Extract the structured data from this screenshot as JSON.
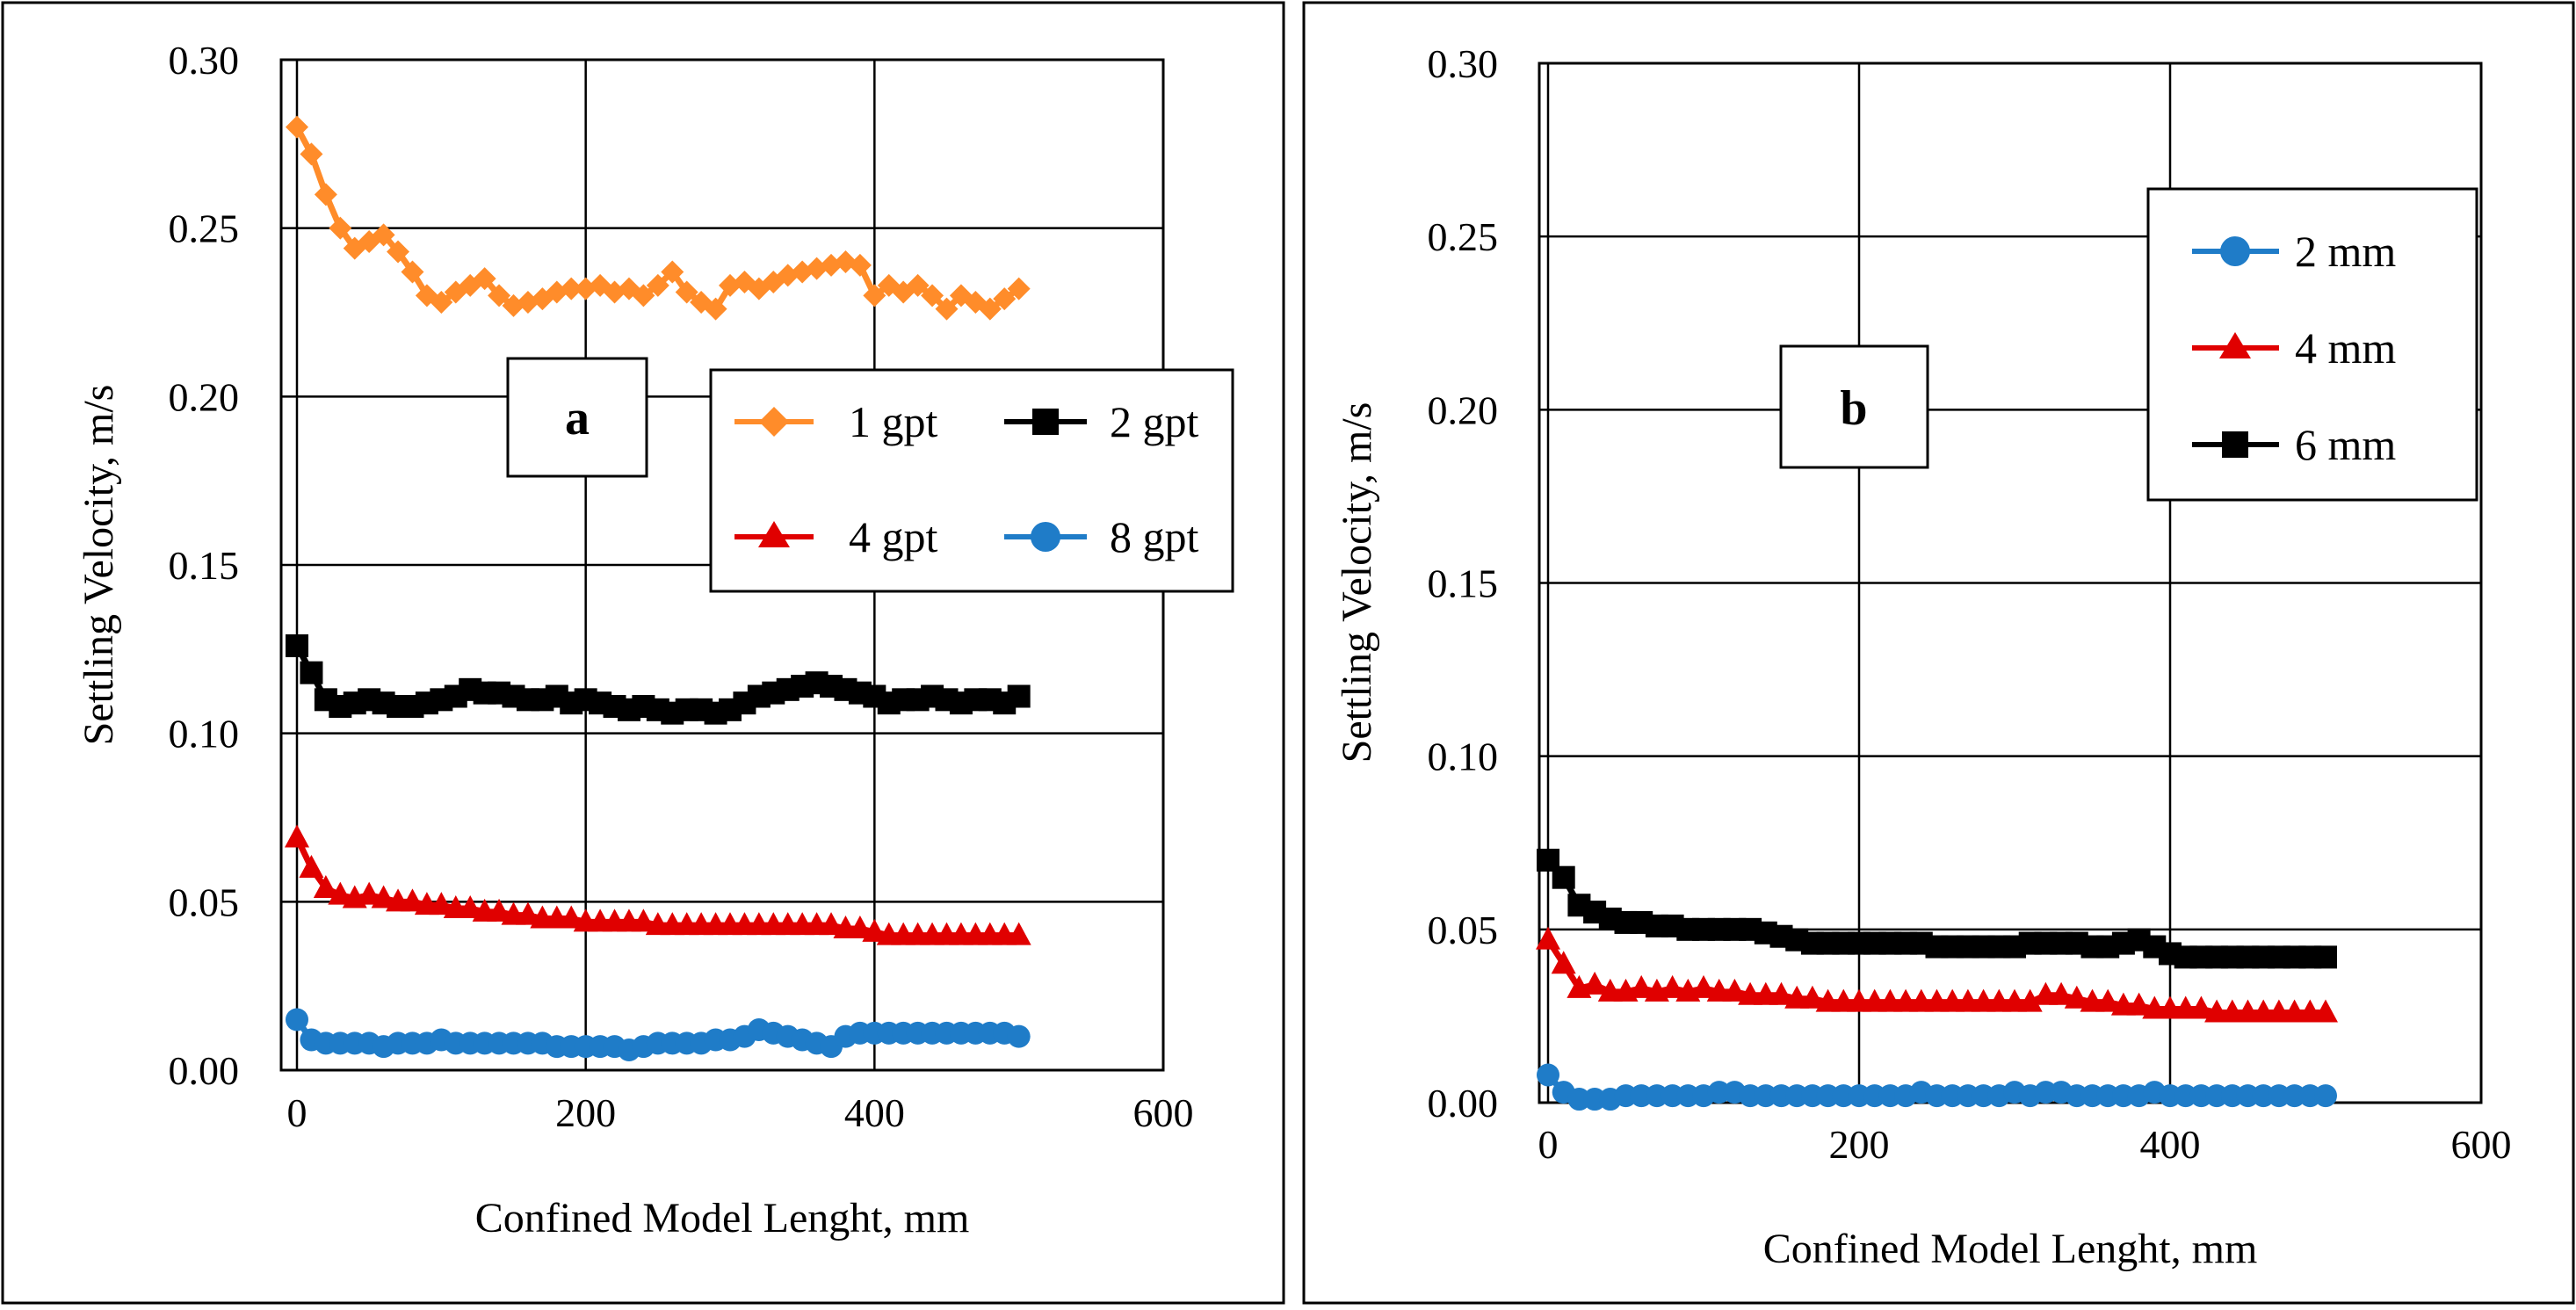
{
  "colors": {
    "orange": "#FF8C2A",
    "black": "#000000",
    "red": "#E00000",
    "blue": "#1F7CC8"
  },
  "chart_data": [
    {
      "type": "line",
      "panel_label": "a",
      "xlabel": "Confined Model Lenght, mm",
      "ylabel": "Settling Velocity, m/s",
      "xlim": [
        0,
        600
      ],
      "ylim": [
        0.0,
        0.3
      ],
      "xticks": [
        "0",
        "200",
        "400",
        "600"
      ],
      "yticks": [
        "0.00",
        "0.05",
        "0.10",
        "0.15",
        "0.20",
        "0.25",
        "0.30"
      ],
      "grid": true,
      "legend_position": "right-middle",
      "series": [
        {
          "name": "1 gpt",
          "color": "#FF8C2A",
          "marker": "diamond",
          "x": [
            0,
            10,
            20,
            30,
            40,
            50,
            60,
            70,
            80,
            90,
            100,
            110,
            120,
            130,
            140,
            150,
            160,
            170,
            180,
            190,
            200,
            210,
            220,
            230,
            240,
            250,
            260,
            270,
            280,
            290,
            300,
            310,
            320,
            330,
            340,
            350,
            360,
            370,
            380,
            390,
            400,
            410,
            420,
            430,
            440,
            450,
            460,
            470,
            480,
            490,
            500
          ],
          "y": [
            0.28,
            0.272,
            0.26,
            0.25,
            0.244,
            0.246,
            0.248,
            0.243,
            0.237,
            0.23,
            0.228,
            0.231,
            0.233,
            0.235,
            0.23,
            0.227,
            0.228,
            0.229,
            0.231,
            0.232,
            0.232,
            0.233,
            0.231,
            0.232,
            0.23,
            0.233,
            0.237,
            0.231,
            0.228,
            0.226,
            0.233,
            0.234,
            0.232,
            0.234,
            0.236,
            0.237,
            0.238,
            0.239,
            0.24,
            0.239,
            0.23,
            0.233,
            0.231,
            0.233,
            0.23,
            0.226,
            0.23,
            0.228,
            0.226,
            0.229,
            0.232
          ]
        },
        {
          "name": "2 gpt",
          "color": "#000000",
          "marker": "square",
          "x": [
            0,
            10,
            20,
            30,
            40,
            50,
            60,
            70,
            80,
            90,
            100,
            110,
            120,
            130,
            140,
            150,
            160,
            170,
            180,
            190,
            200,
            210,
            220,
            230,
            240,
            250,
            260,
            270,
            280,
            290,
            300,
            310,
            320,
            330,
            340,
            350,
            360,
            370,
            380,
            390,
            400,
            410,
            420,
            430,
            440,
            450,
            460,
            470,
            480,
            490,
            500
          ],
          "y": [
            0.126,
            0.118,
            0.11,
            0.108,
            0.109,
            0.11,
            0.109,
            0.108,
            0.108,
            0.109,
            0.11,
            0.111,
            0.113,
            0.112,
            0.112,
            0.111,
            0.11,
            0.11,
            0.111,
            0.109,
            0.11,
            0.109,
            0.108,
            0.107,
            0.108,
            0.107,
            0.106,
            0.107,
            0.107,
            0.106,
            0.107,
            0.109,
            0.111,
            0.112,
            0.113,
            0.114,
            0.115,
            0.114,
            0.113,
            0.112,
            0.111,
            0.109,
            0.11,
            0.11,
            0.111,
            0.11,
            0.109,
            0.11,
            0.11,
            0.109,
            0.111
          ]
        },
        {
          "name": "4 gpt",
          "color": "#E00000",
          "marker": "triangle",
          "x": [
            0,
            10,
            20,
            30,
            40,
            50,
            60,
            70,
            80,
            90,
            100,
            110,
            120,
            130,
            140,
            150,
            160,
            170,
            180,
            190,
            200,
            210,
            220,
            230,
            240,
            250,
            260,
            270,
            280,
            290,
            300,
            310,
            320,
            330,
            340,
            350,
            360,
            370,
            380,
            390,
            400,
            410,
            420,
            430,
            440,
            450,
            460,
            470,
            480,
            490,
            500
          ],
          "y": [
            0.069,
            0.06,
            0.054,
            0.052,
            0.051,
            0.052,
            0.051,
            0.05,
            0.05,
            0.049,
            0.049,
            0.048,
            0.048,
            0.047,
            0.047,
            0.046,
            0.046,
            0.045,
            0.045,
            0.045,
            0.044,
            0.044,
            0.044,
            0.044,
            0.044,
            0.043,
            0.043,
            0.043,
            0.043,
            0.043,
            0.043,
            0.043,
            0.043,
            0.043,
            0.043,
            0.043,
            0.043,
            0.043,
            0.042,
            0.042,
            0.041,
            0.04,
            0.04,
            0.04,
            0.04,
            0.04,
            0.04,
            0.04,
            0.04,
            0.04,
            0.04
          ]
        },
        {
          "name": "8 gpt",
          "color": "#1F7CC8",
          "marker": "circle",
          "x": [
            0,
            10,
            20,
            30,
            40,
            50,
            60,
            70,
            80,
            90,
            100,
            110,
            120,
            130,
            140,
            150,
            160,
            170,
            180,
            190,
            200,
            210,
            220,
            230,
            240,
            250,
            260,
            270,
            280,
            290,
            300,
            310,
            320,
            330,
            340,
            350,
            360,
            370,
            380,
            390,
            400,
            410,
            420,
            430,
            440,
            450,
            460,
            470,
            480,
            490,
            500
          ],
          "y": [
            0.015,
            0.009,
            0.008,
            0.008,
            0.008,
            0.008,
            0.007,
            0.008,
            0.008,
            0.008,
            0.009,
            0.008,
            0.008,
            0.008,
            0.008,
            0.008,
            0.008,
            0.008,
            0.007,
            0.007,
            0.007,
            0.007,
            0.007,
            0.006,
            0.007,
            0.008,
            0.008,
            0.008,
            0.008,
            0.009,
            0.009,
            0.01,
            0.012,
            0.011,
            0.01,
            0.009,
            0.008,
            0.007,
            0.01,
            0.011,
            0.011,
            0.011,
            0.011,
            0.011,
            0.011,
            0.011,
            0.011,
            0.011,
            0.011,
            0.011,
            0.01
          ]
        }
      ]
    },
    {
      "type": "line",
      "panel_label": "b",
      "xlabel": "Confined Model Lenght, mm",
      "ylabel": "Settling Velocity, m/s",
      "xlim": [
        0,
        600
      ],
      "ylim": [
        0.0,
        0.3
      ],
      "xticks": [
        "0",
        "200",
        "400",
        "600"
      ],
      "yticks": [
        "0.00",
        "0.05",
        "0.10",
        "0.15",
        "0.20",
        "0.25",
        "0.30"
      ],
      "grid": true,
      "legend_position": "top-right",
      "series": [
        {
          "name": "2 mm",
          "color": "#1F7CC8",
          "marker": "circle",
          "x": [
            0,
            10,
            20,
            30,
            40,
            50,
            60,
            70,
            80,
            90,
            100,
            110,
            120,
            130,
            140,
            150,
            160,
            170,
            180,
            190,
            200,
            210,
            220,
            230,
            240,
            250,
            260,
            270,
            280,
            290,
            300,
            310,
            320,
            330,
            340,
            350,
            360,
            370,
            380,
            390,
            400,
            410,
            420,
            430,
            440,
            450,
            460,
            470,
            480,
            490,
            500
          ],
          "y": [
            0.008,
            0.003,
            0.001,
            0.001,
            0.001,
            0.002,
            0.002,
            0.002,
            0.002,
            0.002,
            0.002,
            0.003,
            0.003,
            0.002,
            0.002,
            0.002,
            0.002,
            0.002,
            0.002,
            0.002,
            0.002,
            0.002,
            0.002,
            0.002,
            0.003,
            0.002,
            0.002,
            0.002,
            0.002,
            0.002,
            0.003,
            0.002,
            0.003,
            0.003,
            0.002,
            0.002,
            0.002,
            0.002,
            0.002,
            0.003,
            0.002,
            0.002,
            0.002,
            0.002,
            0.002,
            0.002,
            0.002,
            0.002,
            0.002,
            0.002,
            0.002
          ]
        },
        {
          "name": "4 mm",
          "color": "#E00000",
          "marker": "triangle",
          "x": [
            0,
            10,
            20,
            30,
            40,
            50,
            60,
            70,
            80,
            90,
            100,
            110,
            120,
            130,
            140,
            150,
            160,
            170,
            180,
            190,
            200,
            210,
            220,
            230,
            240,
            250,
            260,
            270,
            280,
            290,
            300,
            310,
            320,
            330,
            340,
            350,
            360,
            370,
            380,
            390,
            400,
            410,
            420,
            430,
            440,
            450,
            460,
            470,
            480,
            490,
            500
          ],
          "y": [
            0.047,
            0.04,
            0.033,
            0.034,
            0.032,
            0.032,
            0.033,
            0.032,
            0.033,
            0.032,
            0.033,
            0.032,
            0.032,
            0.031,
            0.031,
            0.031,
            0.03,
            0.03,
            0.029,
            0.029,
            0.029,
            0.029,
            0.029,
            0.029,
            0.029,
            0.029,
            0.029,
            0.029,
            0.029,
            0.029,
            0.029,
            0.029,
            0.031,
            0.031,
            0.03,
            0.029,
            0.029,
            0.028,
            0.028,
            0.027,
            0.027,
            0.027,
            0.027,
            0.026,
            0.026,
            0.026,
            0.026,
            0.026,
            0.026,
            0.026,
            0.026
          ]
        },
        {
          "name": "6  mm",
          "color": "#000000",
          "marker": "square",
          "x": [
            0,
            10,
            20,
            30,
            40,
            50,
            60,
            70,
            80,
            90,
            100,
            110,
            120,
            130,
            140,
            150,
            160,
            170,
            180,
            190,
            200,
            210,
            220,
            230,
            240,
            250,
            260,
            270,
            280,
            290,
            300,
            310,
            320,
            330,
            340,
            350,
            360,
            370,
            380,
            390,
            400,
            410,
            420,
            430,
            440,
            450,
            460,
            470,
            480,
            490,
            500
          ],
          "y": [
            0.07,
            0.065,
            0.057,
            0.055,
            0.053,
            0.052,
            0.052,
            0.051,
            0.051,
            0.05,
            0.05,
            0.05,
            0.05,
            0.05,
            0.049,
            0.048,
            0.047,
            0.046,
            0.046,
            0.046,
            0.046,
            0.046,
            0.046,
            0.046,
            0.046,
            0.045,
            0.045,
            0.045,
            0.045,
            0.045,
            0.045,
            0.046,
            0.046,
            0.046,
            0.046,
            0.045,
            0.045,
            0.046,
            0.047,
            0.045,
            0.043,
            0.042,
            0.042,
            0.042,
            0.042,
            0.042,
            0.042,
            0.042,
            0.042,
            0.042,
            0.042
          ]
        }
      ]
    }
  ]
}
